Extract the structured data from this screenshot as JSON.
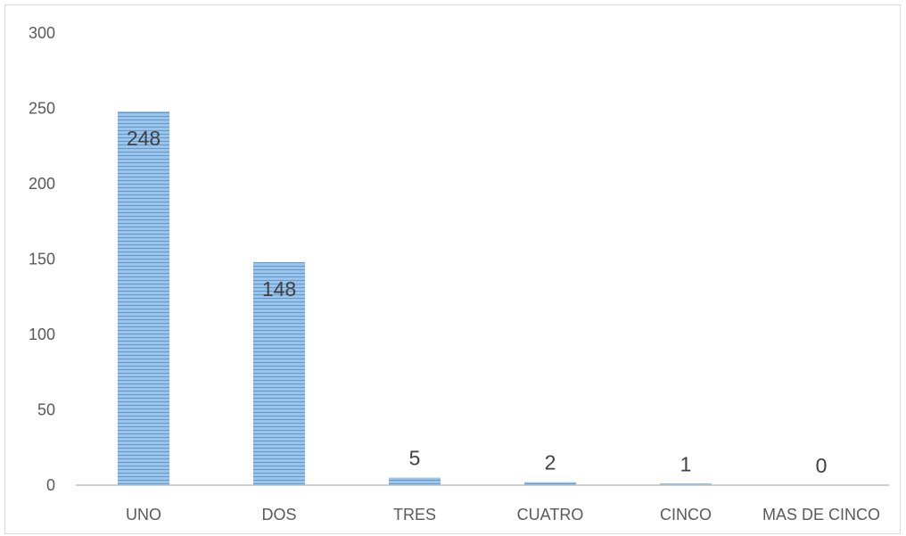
{
  "chart_data": {
    "type": "bar",
    "categories": [
      "UNO",
      "DOS",
      "TRES",
      "CUATRO",
      "CINCO",
      "MAS DE CINCO"
    ],
    "values": [
      248,
      148,
      5,
      2,
      1,
      0
    ],
    "data_labels": [
      "248",
      "148",
      "5",
      "2",
      "1",
      "0"
    ],
    "title": "",
    "xlabel": "",
    "ylabel": "",
    "ylim": [
      0,
      300
    ],
    "yticks": [
      0,
      50,
      100,
      150,
      200,
      250,
      300
    ],
    "grid": false,
    "legend": "none",
    "colors": {
      "bar_fill": "#9dc3e6",
      "bar_stripe": "#5b9bd5",
      "axis": "#bfbfbf",
      "text": "#595959",
      "data_label": "#404040"
    }
  }
}
